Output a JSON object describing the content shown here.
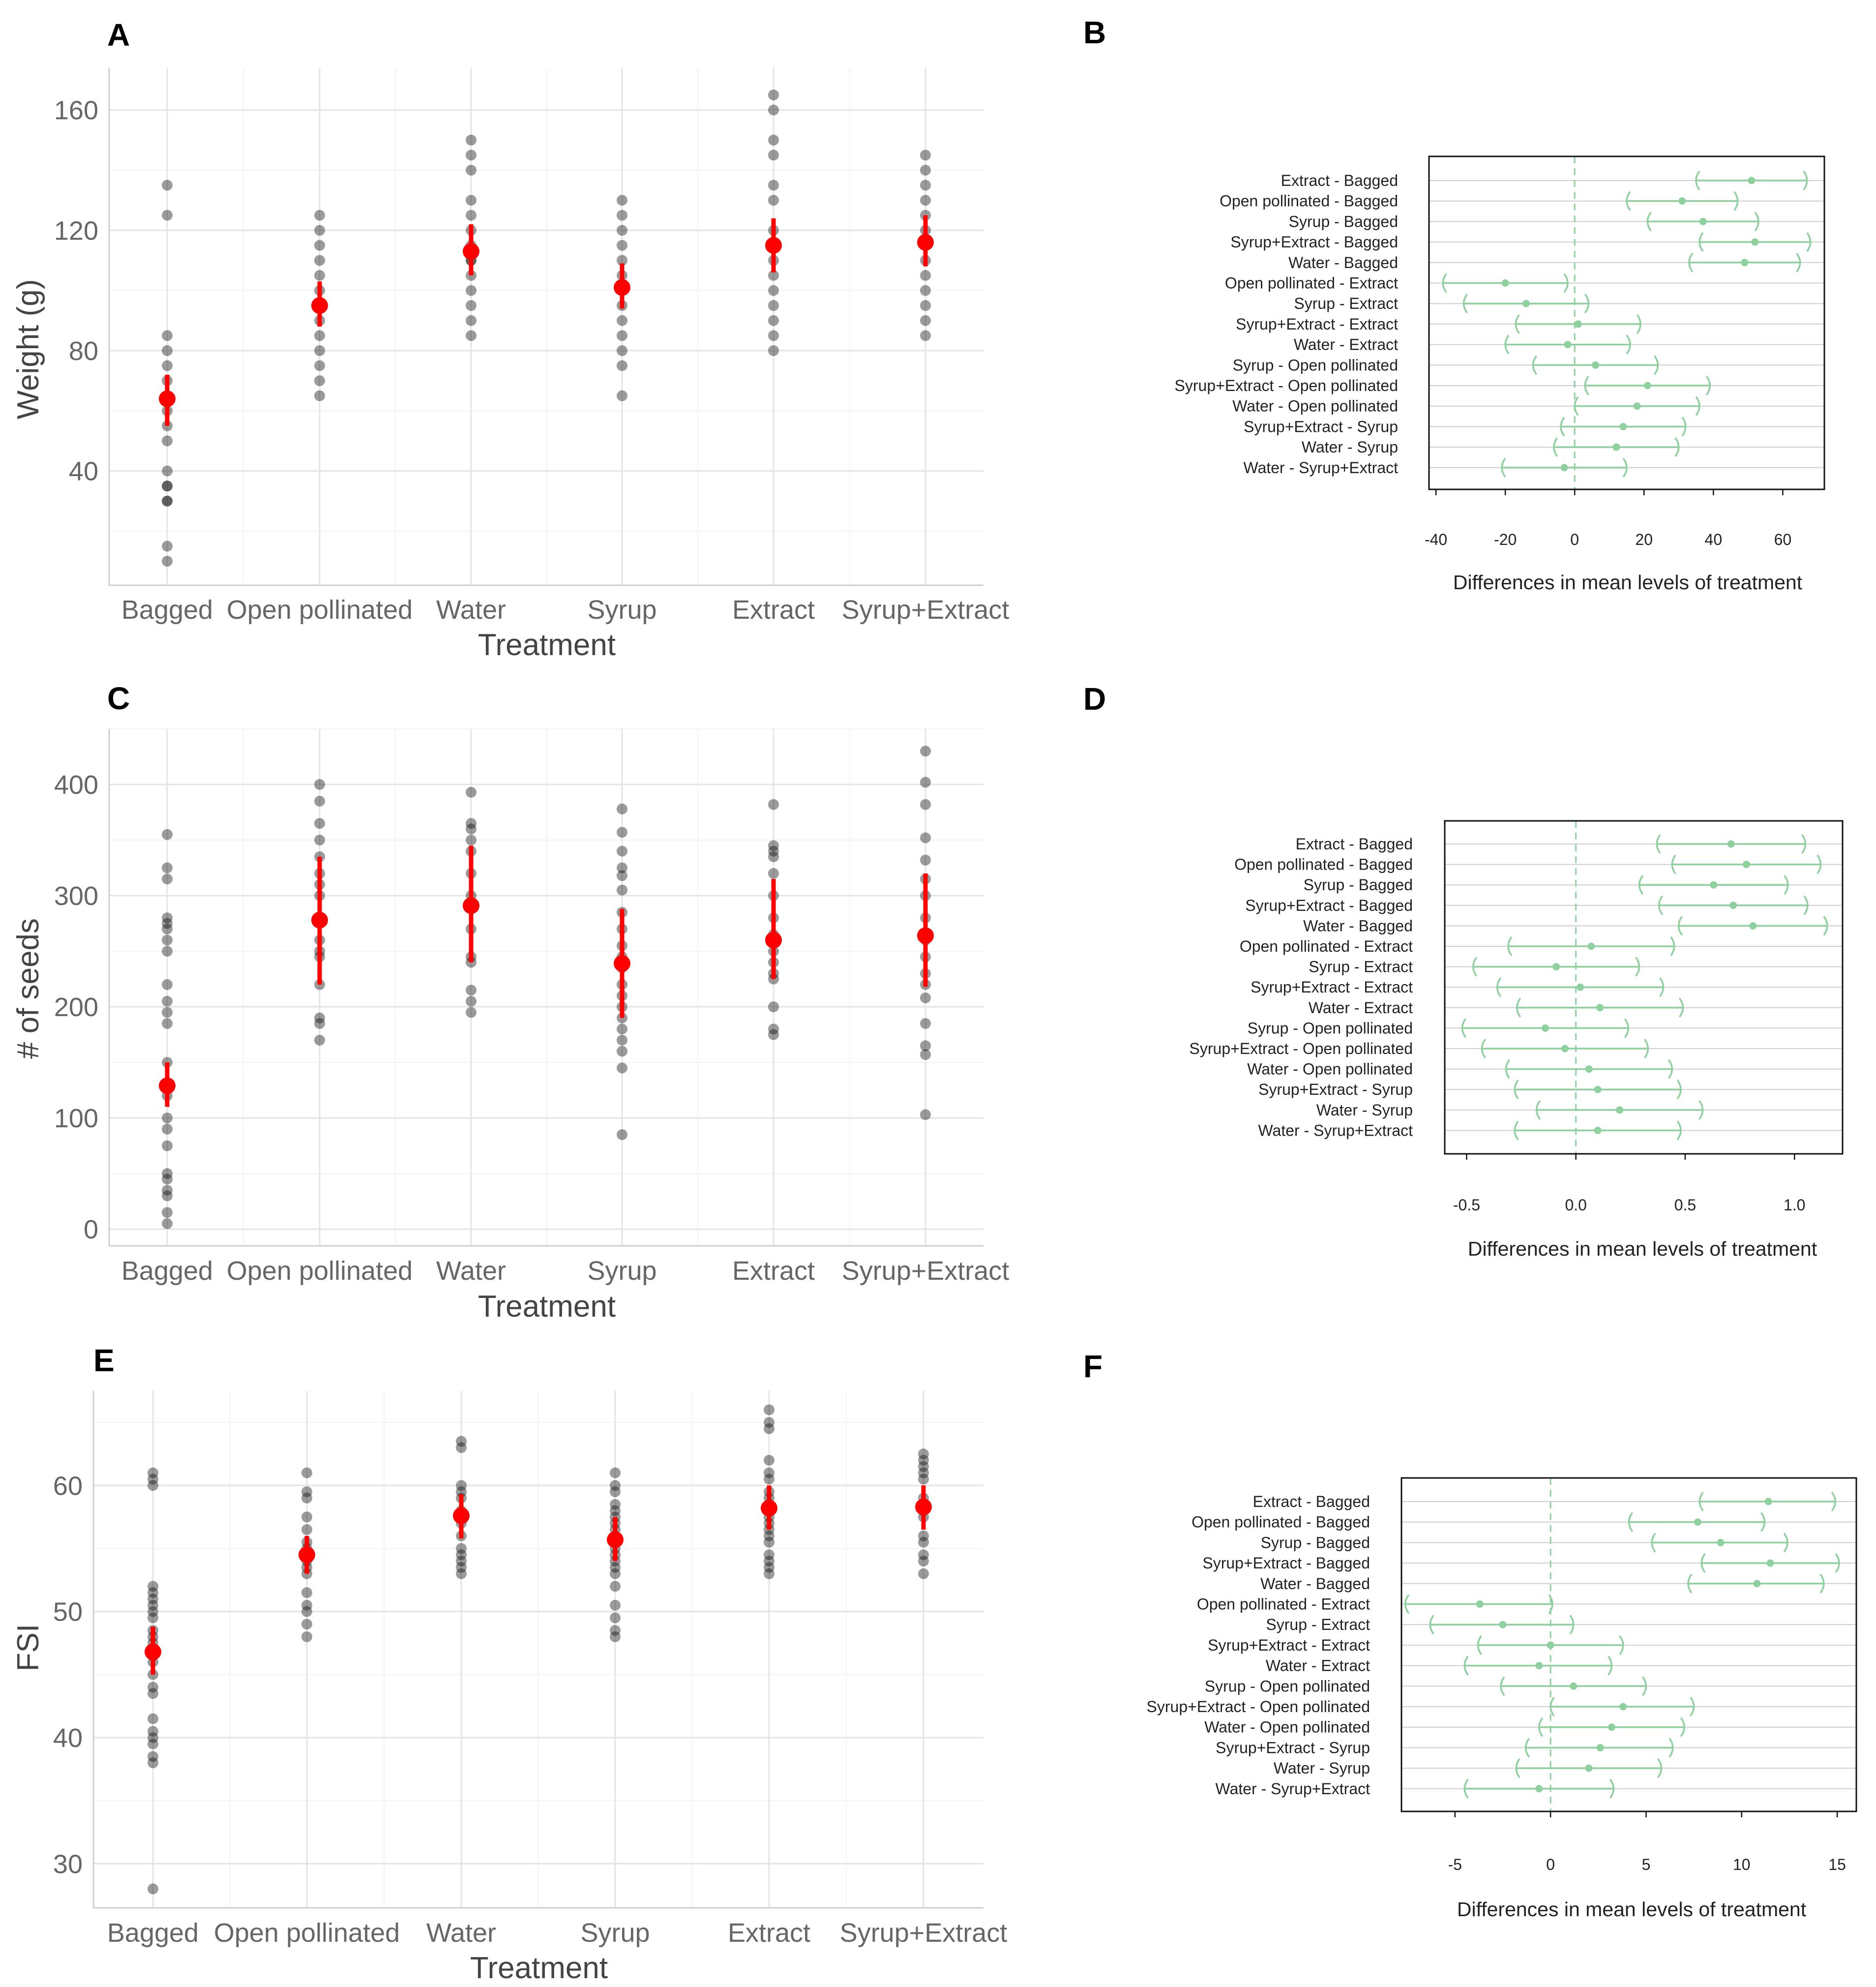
{
  "chart_data": [
    {
      "panel": "A",
      "type": "scatter",
      "xlabel": "Treatment",
      "ylabel": "Weight (g)",
      "categories": [
        "Bagged",
        "Open pollinated",
        "Water",
        "Syrup",
        "Extract",
        "Syrup+Extract"
      ],
      "ylim": [
        2,
        174
      ],
      "yticks": [
        40,
        80,
        120,
        160
      ],
      "grid": true,
      "points": [
        [
          135,
          125,
          85,
          80,
          75,
          70,
          65,
          60,
          55,
          50,
          40,
          35,
          35,
          30,
          30,
          15,
          10
        ],
        [
          125,
          120,
          115,
          110,
          105,
          100,
          95,
          90,
          85,
          80,
          75,
          70,
          65
        ],
        [
          150,
          145,
          140,
          130,
          125,
          120,
          115,
          110,
          110,
          105,
          100,
          95,
          90,
          85
        ],
        [
          130,
          125,
          120,
          115,
          110,
          105,
          100,
          95,
          90,
          85,
          80,
          75,
          65
        ],
        [
          165,
          160,
          150,
          145,
          135,
          130,
          120,
          115,
          110,
          105,
          100,
          95,
          90,
          85,
          80
        ],
        [
          145,
          140,
          135,
          130,
          125,
          120,
          115,
          110,
          105,
          100,
          95,
          90,
          85
        ]
      ],
      "means": [
        64,
        95,
        113,
        101,
        115,
        116
      ],
      "ci": [
        [
          55,
          72
        ],
        [
          88,
          103
        ],
        [
          105,
          122
        ],
        [
          94,
          109
        ],
        [
          106,
          124
        ],
        [
          108,
          125
        ]
      ]
    },
    {
      "panel": "C",
      "type": "scatter",
      "xlabel": "Treatment",
      "ylabel": "# of seeds",
      "categories": [
        "Bagged",
        "Open pollinated",
        "Water",
        "Syrup",
        "Extract",
        "Syrup+Extract"
      ],
      "ylim": [
        -15,
        450
      ],
      "yticks": [
        0,
        100,
        200,
        300,
        400
      ],
      "grid": true,
      "points": [
        [
          355,
          325,
          315,
          280,
          275,
          270,
          260,
          250,
          220,
          205,
          195,
          185,
          150,
          120,
          100,
          90,
          75,
          50,
          45,
          35,
          30,
          15,
          5
        ],
        [
          400,
          385,
          365,
          350,
          335,
          320,
          310,
          300,
          280,
          260,
          250,
          245,
          220,
          190,
          185,
          170
        ],
        [
          393,
          365,
          360,
          350,
          340,
          320,
          300,
          290,
          270,
          245,
          240,
          215,
          205,
          195
        ],
        [
          378,
          357,
          340,
          325,
          318,
          305,
          285,
          270,
          255,
          245,
          235,
          220,
          210,
          200,
          190,
          180,
          170,
          160,
          145,
          85
        ],
        [
          382,
          345,
          340,
          335,
          320,
          300,
          280,
          265,
          250,
          240,
          230,
          225,
          200,
          180,
          175
        ],
        [
          430,
          402,
          382,
          352,
          332,
          315,
          300,
          280,
          260,
          245,
          230,
          220,
          208,
          185,
          165,
          157,
          103
        ]
      ],
      "means": [
        129,
        278,
        291,
        239,
        260,
        264
      ],
      "ci": [
        [
          110,
          150
        ],
        [
          220,
          335
        ],
        [
          240,
          345
        ],
        [
          190,
          288
        ],
        [
          225,
          315
        ],
        [
          218,
          320
        ]
      ]
    },
    {
      "panel": "E",
      "type": "scatter",
      "xlabel": "Treatment",
      "ylabel": "FSI",
      "categories": [
        "Bagged",
        "Open pollinated",
        "Water",
        "Syrup",
        "Extract",
        "Syrup+Extract"
      ],
      "ylim": [
        26.5,
        67.5
      ],
      "yticks": [
        30,
        40,
        50,
        60
      ],
      "grid": true,
      "points": [
        [
          61,
          60.5,
          60,
          52,
          51.5,
          51,
          50.5,
          50,
          49.5,
          48.5,
          48,
          47.5,
          47,
          46.5,
          46,
          45,
          44,
          43.5,
          41.5,
          40.5,
          40,
          39.5,
          38.5,
          38,
          28
        ],
        [
          61,
          59.5,
          59,
          57.5,
          56.5,
          55.5,
          55,
          54,
          53.5,
          53,
          51.5,
          50.5,
          50,
          49,
          48
        ],
        [
          63.5,
          63,
          60,
          59.5,
          59,
          58,
          57,
          56,
          55,
          54.5,
          54,
          53.5,
          53
        ],
        [
          61,
          60,
          59.5,
          58.5,
          58,
          57.5,
          57,
          56.5,
          56,
          55.5,
          55,
          54.5,
          54,
          53.5,
          53,
          52,
          50.5,
          49.5,
          48.5,
          48
        ],
        [
          66,
          65,
          64.5,
          62,
          61,
          60.5,
          59.5,
          59,
          58.5,
          58,
          57.5,
          57,
          56.5,
          56,
          55.5,
          54.5,
          54,
          53.5,
          53
        ],
        [
          62.5,
          62,
          61.5,
          61,
          60.5,
          59,
          58.5,
          58,
          57.5,
          56,
          55.5,
          54.5,
          54,
          53
        ]
      ],
      "means": [
        46.8,
        54.5,
        57.6,
        55.7,
        58.2,
        58.3
      ],
      "ci": [
        [
          45,
          48.8
        ],
        [
          53,
          56
        ],
        [
          55.8,
          59.3
        ],
        [
          54,
          57.5
        ],
        [
          56.5,
          60
        ],
        [
          56.5,
          60
        ]
      ]
    },
    {
      "panel": "B",
      "type": "scatter",
      "subtype": "tukey-hsd",
      "xlabel": "Differences in mean levels of treatment",
      "xlim": [
        -42,
        72
      ],
      "xticks": [
        -40,
        -20,
        0,
        20,
        40,
        60
      ],
      "comparisons": [
        "Extract - Bagged",
        "Open pollinated - Bagged",
        "Syrup - Bagged",
        "Syrup+Extract - Bagged",
        "Water - Bagged",
        "Open pollinated - Extract",
        "Syrup - Extract",
        "Syrup+Extract - Extract",
        "Water - Extract",
        "Syrup - Open pollinated",
        "Syrup+Extract - Open pollinated",
        "Water - Open pollinated",
        "Syrup+Extract - Syrup",
        "Water - Syrup",
        "Water - Syrup+Extract"
      ],
      "estimates": [
        51,
        31,
        37,
        52,
        49,
        -20,
        -14,
        1,
        -2,
        6,
        21,
        18,
        14,
        12,
        -3
      ],
      "lower": [
        35,
        15,
        21,
        36,
        33,
        -38,
        -32,
        -17,
        -20,
        -12,
        3,
        0,
        -4,
        -6,
        -21
      ],
      "upper": [
        67,
        47,
        53,
        68,
        65,
        -2,
        4,
        19,
        16,
        24,
        39,
        36,
        32,
        30,
        15
      ]
    },
    {
      "panel": "D",
      "type": "scatter",
      "subtype": "tukey-hsd",
      "xlabel": "Differences in mean levels of treatment",
      "xlim": [
        -0.6,
        1.22
      ],
      "xticks": [
        -0.5,
        0.0,
        0.5,
        1.0
      ],
      "tick_labels": [
        "-0.5",
        "0.0",
        "0.5",
        "1.0"
      ],
      "comparisons": [
        "Extract - Bagged",
        "Open pollinated - Bagged",
        "Syrup - Bagged",
        "Syrup+Extract - Bagged",
        "Water - Bagged",
        "Open pollinated - Extract",
        "Syrup - Extract",
        "Syrup+Extract - Extract",
        "Water - Extract",
        "Syrup - Open pollinated",
        "Syrup+Extract - Open pollinated",
        "Water - Open pollinated",
        "Syrup+Extract - Syrup",
        "Water - Syrup",
        "Water - Syrup+Extract"
      ],
      "estimates": [
        0.71,
        0.78,
        0.63,
        0.72,
        0.81,
        0.07,
        -0.09,
        0.02,
        0.11,
        -0.14,
        -0.05,
        0.06,
        0.1,
        0.2,
        0.1
      ],
      "lower": [
        0.37,
        0.44,
        0.29,
        0.38,
        0.47,
        -0.31,
        -0.47,
        -0.36,
        -0.27,
        -0.52,
        -0.43,
        -0.32,
        -0.28,
        -0.18,
        -0.28
      ],
      "upper": [
        1.05,
        1.12,
        0.97,
        1.06,
        1.15,
        0.45,
        0.29,
        0.4,
        0.49,
        0.24,
        0.33,
        0.44,
        0.48,
        0.58,
        0.48
      ]
    },
    {
      "panel": "F",
      "type": "scatter",
      "subtype": "tukey-hsd",
      "xlabel": "Differences in mean levels of treatment",
      "xlim": [
        -7.8,
        16
      ],
      "xticks": [
        -5,
        0,
        5,
        10,
        15
      ],
      "comparisons": [
        "Extract - Bagged",
        "Open pollinated - Bagged",
        "Syrup - Bagged",
        "Syrup+Extract - Bagged",
        "Water - Bagged",
        "Open pollinated - Extract",
        "Syrup - Extract",
        "Syrup+Extract - Extract",
        "Water - Extract",
        "Syrup - Open pollinated",
        "Syrup+Extract - Open pollinated",
        "Water - Open pollinated",
        "Syrup+Extract - Syrup",
        "Water - Syrup",
        "Water - Syrup+Extract"
      ],
      "estimates": [
        11.4,
        7.7,
        8.9,
        11.5,
        10.8,
        -3.7,
        -2.5,
        0,
        -0.6,
        1.2,
        3.8,
        3.2,
        2.6,
        2,
        -0.6
      ],
      "lower": [
        7.8,
        4.1,
        5.3,
        7.9,
        7.2,
        -7.6,
        -6.3,
        -3.8,
        -4.5,
        -2.6,
        0,
        -0.6,
        -1.3,
        -1.8,
        -4.5
      ],
      "upper": [
        14.9,
        11.2,
        12.4,
        15.1,
        14.3,
        0.1,
        1.2,
        3.8,
        3.2,
        5,
        7.5,
        7,
        6.4,
        5.8,
        3.3
      ]
    }
  ]
}
